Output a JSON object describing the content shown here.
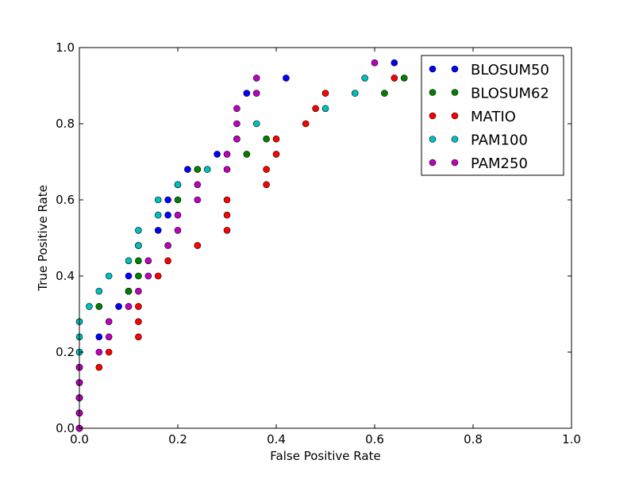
{
  "chart_data": {
    "type": "scatter",
    "title": "",
    "xlabel": "False Positive Rate",
    "ylabel": "True Positive Rate",
    "xlim": [
      0.0,
      1.0
    ],
    "ylim": [
      0.0,
      1.0
    ],
    "x_ticks": [
      "0.0",
      "0.2",
      "0.4",
      "0.6",
      "0.8",
      "1.0"
    ],
    "y_ticks": [
      "0.0",
      "0.2",
      "0.4",
      "0.6",
      "0.8",
      "1.0"
    ],
    "grid": false,
    "legend_position": "top-right",
    "series": [
      {
        "name": "BLOSUM50",
        "color": "#0000ff",
        "points": [
          [
            0.0,
            0.0
          ],
          [
            0.0,
            0.04
          ],
          [
            0.0,
            0.08
          ],
          [
            0.0,
            0.12
          ],
          [
            0.0,
            0.16
          ],
          [
            0.0,
            0.2
          ],
          [
            0.04,
            0.24
          ],
          [
            0.08,
            0.32
          ],
          [
            0.1,
            0.36
          ],
          [
            0.1,
            0.4
          ],
          [
            0.12,
            0.48
          ],
          [
            0.16,
            0.52
          ],
          [
            0.18,
            0.56
          ],
          [
            0.18,
            0.6
          ],
          [
            0.2,
            0.64
          ],
          [
            0.22,
            0.68
          ],
          [
            0.28,
            0.72
          ],
          [
            0.32,
            0.76
          ],
          [
            0.34,
            0.88
          ],
          [
            0.42,
            0.92
          ],
          [
            0.64,
            0.96
          ]
        ]
      },
      {
        "name": "BLOSUM62",
        "color": "#008000",
        "points": [
          [
            0.0,
            0.0
          ],
          [
            0.0,
            0.04
          ],
          [
            0.0,
            0.08
          ],
          [
            0.0,
            0.12
          ],
          [
            0.0,
            0.16
          ],
          [
            0.04,
            0.32
          ],
          [
            0.1,
            0.36
          ],
          [
            0.12,
            0.4
          ],
          [
            0.12,
            0.44
          ],
          [
            0.2,
            0.6
          ],
          [
            0.24,
            0.68
          ],
          [
            0.34,
            0.72
          ],
          [
            0.38,
            0.76
          ],
          [
            0.62,
            0.88
          ],
          [
            0.66,
            0.92
          ]
        ]
      },
      {
        "name": "MATIO",
        "color": "#ff0000",
        "points": [
          [
            0.0,
            0.0
          ],
          [
            0.0,
            0.04
          ],
          [
            0.0,
            0.08
          ],
          [
            0.04,
            0.16
          ],
          [
            0.06,
            0.2
          ],
          [
            0.12,
            0.24
          ],
          [
            0.12,
            0.28
          ],
          [
            0.12,
            0.32
          ],
          [
            0.16,
            0.4
          ],
          [
            0.18,
            0.44
          ],
          [
            0.24,
            0.48
          ],
          [
            0.3,
            0.52
          ],
          [
            0.3,
            0.56
          ],
          [
            0.3,
            0.6
          ],
          [
            0.38,
            0.64
          ],
          [
            0.38,
            0.68
          ],
          [
            0.4,
            0.72
          ],
          [
            0.4,
            0.76
          ],
          [
            0.46,
            0.8
          ],
          [
            0.48,
            0.84
          ],
          [
            0.5,
            0.88
          ],
          [
            0.64,
            0.92
          ]
        ]
      },
      {
        "name": "PAM100",
        "color": "#00bfbf",
        "points": [
          [
            0.0,
            0.0
          ],
          [
            0.0,
            0.2
          ],
          [
            0.0,
            0.24
          ],
          [
            0.0,
            0.28
          ],
          [
            0.02,
            0.32
          ],
          [
            0.04,
            0.36
          ],
          [
            0.06,
            0.4
          ],
          [
            0.1,
            0.44
          ],
          [
            0.12,
            0.48
          ],
          [
            0.12,
            0.52
          ],
          [
            0.16,
            0.56
          ],
          [
            0.16,
            0.6
          ],
          [
            0.2,
            0.64
          ],
          [
            0.26,
            0.68
          ],
          [
            0.36,
            0.8
          ],
          [
            0.5,
            0.84
          ],
          [
            0.56,
            0.88
          ],
          [
            0.58,
            0.92
          ]
        ]
      },
      {
        "name": "PAM250",
        "color": "#bf00bf",
        "points": [
          [
            0.0,
            0.0
          ],
          [
            0.0,
            0.04
          ],
          [
            0.0,
            0.08
          ],
          [
            0.0,
            0.12
          ],
          [
            0.0,
            0.16
          ],
          [
            0.04,
            0.2
          ],
          [
            0.06,
            0.24
          ],
          [
            0.06,
            0.28
          ],
          [
            0.1,
            0.32
          ],
          [
            0.12,
            0.36
          ],
          [
            0.14,
            0.4
          ],
          [
            0.14,
            0.44
          ],
          [
            0.18,
            0.48
          ],
          [
            0.2,
            0.52
          ],
          [
            0.2,
            0.56
          ],
          [
            0.24,
            0.6
          ],
          [
            0.24,
            0.64
          ],
          [
            0.3,
            0.68
          ],
          [
            0.3,
            0.72
          ],
          [
            0.32,
            0.76
          ],
          [
            0.32,
            0.8
          ],
          [
            0.32,
            0.84
          ],
          [
            0.36,
            0.88
          ],
          [
            0.36,
            0.92
          ],
          [
            0.6,
            0.96
          ]
        ]
      }
    ]
  }
}
